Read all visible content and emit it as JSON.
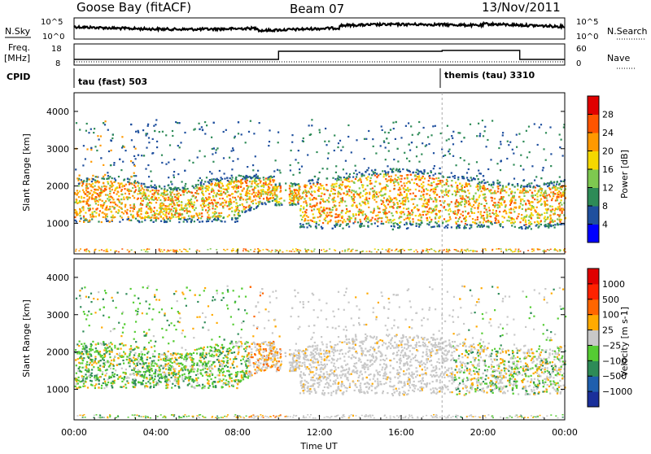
{
  "header": {
    "station": "Goose Bay (fitACF)",
    "beam": "Beam 07",
    "date": "13/Nov/2011"
  },
  "top_panels": {
    "nsky_label": "N.Sky",
    "nsearch_label": "N.Search",
    "nsky_ticks": [
      "10^5",
      "10^0"
    ],
    "nsearch_ticks": [
      "10^5",
      "10^0"
    ],
    "freq_label_top": "Freq.",
    "freq_label_bot": "[MHz]",
    "freq_ticks": [
      "18",
      "8"
    ],
    "nave_label": "Nave",
    "nave_ticks": [
      "60",
      "0"
    ],
    "cpid_label": "CPID",
    "cpid_modes": [
      {
        "name": "tau (fast) 503",
        "start_hour": 0
      },
      {
        "name": "themis (tau) 3310",
        "start_hour": 18
      }
    ]
  },
  "chart_data": [
    {
      "type": "heatmap",
      "panel": "power",
      "ylabel": "Slant Range [km]",
      "xlabel": "",
      "ylim": [
        180,
        4500
      ],
      "yticks": [
        1000,
        2000,
        3000,
        4000
      ],
      "colorbar": {
        "label": "Power [dB]",
        "ticks": [
          4,
          8,
          12,
          16,
          20,
          24,
          28
        ],
        "tick_labels": [
          "4",
          "8",
          "12",
          "16",
          "20",
          "24",
          "28"
        ],
        "colors": [
          "#0000ff",
          "#1f4f9e",
          "#2e8b57",
          "#7ec850",
          "#f5d800",
          "#ff9900",
          "#ff5500",
          "#e00000"
        ]
      }
    },
    {
      "type": "heatmap",
      "panel": "velocity",
      "ylabel": "Slant Range [km]",
      "xlabel": "Time UT",
      "ylim": [
        180,
        4500
      ],
      "yticks": [
        1000,
        2000,
        3000,
        4000
      ],
      "x_tick_labels": [
        "00:00",
        "04:00",
        "08:00",
        "12:00",
        "16:00",
        "20:00",
        "00:00"
      ],
      "x_range_hours": [
        0,
        24
      ],
      "colorbar": {
        "label": "Velocity [m s-1]",
        "ticks": [
          1000,
          500,
          100,
          25,
          -25,
          -100,
          -500,
          -1000
        ],
        "tick_labels": [
          "1000",
          "500",
          "100",
          "25",
          "−25",
          "−100",
          "−500",
          "−1000"
        ],
        "colors": [
          "#1a2f9a",
          "#1f5fae",
          "#2e8b57",
          "#55cc33",
          "#c8c8c8",
          "#ffaa00",
          "#ff6600",
          "#ff2200",
          "#e00000"
        ]
      }
    }
  ],
  "frequency_steps": [
    {
      "start_hour": 0,
      "end_hour": 10,
      "level": "low"
    },
    {
      "start_hour": 10,
      "end_hour": 18,
      "level": "high"
    },
    {
      "start_hour": 18,
      "end_hour": 21.8,
      "level": "higher"
    },
    {
      "start_hour": 21.8,
      "end_hour": 24,
      "level": "low"
    }
  ],
  "colors": {
    "axis": "#000000",
    "marker": "#aaaaaa"
  }
}
